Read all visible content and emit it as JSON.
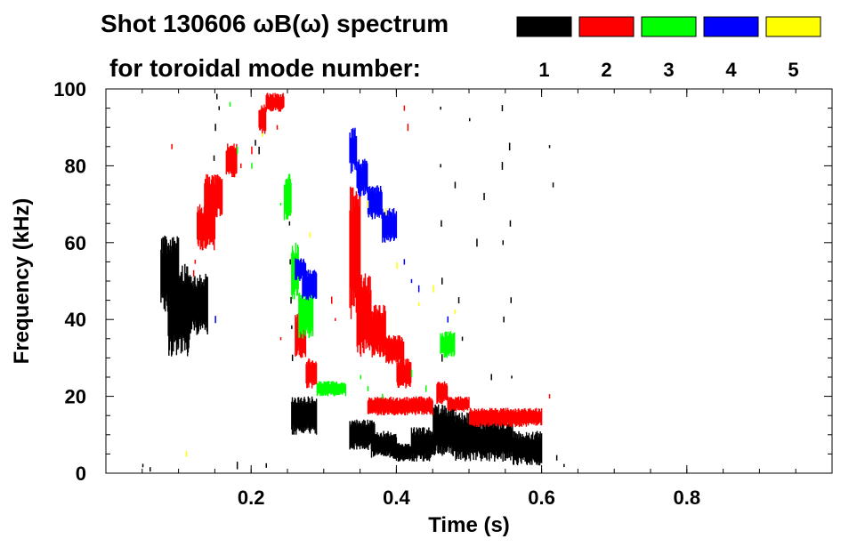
{
  "chart_data": {
    "type": "scatter",
    "title_line1": "Shot 130606 ωB(ω) spectrum",
    "title_line2": "for toroidal mode number:",
    "xlabel": "Time (s)",
    "ylabel": "Frequency (kHz)",
    "xlim": [
      0.0,
      1.0
    ],
    "ylim": [
      0,
      100
    ],
    "xticks": [
      0.2,
      0.4,
      0.6,
      0.8
    ],
    "xtick_labels": [
      "0.2",
      "0.4",
      "0.6",
      "0.8"
    ],
    "yticks": [
      0,
      20,
      40,
      60,
      80,
      100
    ],
    "ytick_labels": [
      "0",
      "20",
      "40",
      "60",
      "80",
      "100"
    ],
    "grid": false,
    "legend_placement": "top-right",
    "legend": [
      {
        "label": "1",
        "color": "#000000"
      },
      {
        "label": "2",
        "color": "#ff0000"
      },
      {
        "label": "3",
        "color": "#00ff00"
      },
      {
        "label": "4",
        "color": "#0000ff"
      },
      {
        "label": "5",
        "color": "#ffff00"
      }
    ],
    "series": [
      {
        "name": "1",
        "color": "#000000",
        "bands": [
          {
            "t": [
              0.075,
              0.1
            ],
            "f": [
              42,
              62
            ]
          },
          {
            "t": [
              0.085,
              0.115
            ],
            "f": [
              30,
              55
            ]
          },
          {
            "t": [
              0.1,
              0.14
            ],
            "f": [
              36,
              52
            ]
          },
          {
            "t": [
              0.255,
              0.29
            ],
            "f": [
              10,
              20
            ]
          },
          {
            "t": [
              0.335,
              0.37
            ],
            "f": [
              6,
              14
            ]
          },
          {
            "t": [
              0.365,
              0.4
            ],
            "f": [
              4,
              11
            ]
          },
          {
            "t": [
              0.395,
              0.42
            ],
            "f": [
              3,
              8
            ]
          },
          {
            "t": [
              0.42,
              0.45
            ],
            "f": [
              3,
              12
            ]
          },
          {
            "t": [
              0.45,
              0.48
            ],
            "f": [
              4,
              18
            ]
          },
          {
            "t": [
              0.48,
              0.515
            ],
            "f": [
              3,
              16
            ]
          },
          {
            "t": [
              0.515,
              0.56
            ],
            "f": [
              3,
              14
            ]
          },
          {
            "t": [
              0.56,
              0.6
            ],
            "f": [
              2,
              11
            ]
          }
        ],
        "points": [
          [
            0.152,
            98
          ],
          [
            0.15,
            90
          ],
          [
            0.148,
            82
          ],
          [
            0.155,
            95
          ],
          [
            0.205,
            86
          ],
          [
            0.21,
            84
          ],
          [
            0.252,
            65
          ],
          [
            0.253,
            55
          ],
          [
            0.254,
            45
          ],
          [
            0.255,
            38
          ],
          [
            0.256,
            30
          ],
          [
            0.46,
            95
          ],
          [
            0.46,
            80
          ],
          [
            0.461,
            65
          ],
          [
            0.462,
            50
          ],
          [
            0.462,
            30
          ],
          [
            0.48,
            75
          ],
          [
            0.485,
            45
          ],
          [
            0.49,
            35
          ],
          [
            0.5,
            92
          ],
          [
            0.51,
            60
          ],
          [
            0.52,
            72
          ],
          [
            0.53,
            25
          ],
          [
            0.545,
            95
          ],
          [
            0.545,
            80
          ],
          [
            0.546,
            60
          ],
          [
            0.547,
            40
          ],
          [
            0.555,
            85
          ],
          [
            0.556,
            65
          ],
          [
            0.557,
            45
          ],
          [
            0.558,
            25
          ],
          [
            0.61,
            85
          ],
          [
            0.615,
            75
          ],
          [
            0.62,
            4
          ],
          [
            0.63,
            2
          ],
          [
            0.05,
            2
          ],
          [
            0.06,
            1
          ],
          [
            0.18,
            2
          ],
          [
            0.22,
            2
          ]
        ]
      },
      {
        "name": "2",
        "color": "#ff0000",
        "bands": [
          {
            "t": [
              0.125,
              0.15
            ],
            "f": [
              58,
              70
            ]
          },
          {
            "t": [
              0.135,
              0.16
            ],
            "f": [
              66,
              78
            ]
          },
          {
            "t": [
              0.165,
              0.18
            ],
            "f": [
              77,
              86
            ]
          },
          {
            "t": [
              0.21,
              0.22
            ],
            "f": [
              88,
              96
            ]
          },
          {
            "t": [
              0.22,
              0.245
            ],
            "f": [
              94,
              99
            ]
          },
          {
            "t": [
              0.26,
              0.275
            ],
            "f": [
              30,
              42
            ]
          },
          {
            "t": [
              0.275,
              0.29
            ],
            "f": [
              22,
              30
            ]
          },
          {
            "t": [
              0.335,
              0.35
            ],
            "f": [
              40,
              75
            ]
          },
          {
            "t": [
              0.345,
              0.365
            ],
            "f": [
              30,
              52
            ]
          },
          {
            "t": [
              0.365,
              0.385
            ],
            "f": [
              30,
              44
            ]
          },
          {
            "t": [
              0.385,
              0.41
            ],
            "f": [
              28,
              36
            ]
          },
          {
            "t": [
              0.4,
              0.42
            ],
            "f": [
              22,
              30
            ]
          },
          {
            "t": [
              0.36,
              0.45
            ],
            "f": [
              15,
              20
            ]
          },
          {
            "t": [
              0.455,
              0.47
            ],
            "f": [
              18,
              24
            ]
          },
          {
            "t": [
              0.47,
              0.5
            ],
            "f": [
              16,
              20
            ]
          },
          {
            "t": [
              0.5,
              0.6
            ],
            "f": [
              12,
              17
            ]
          }
        ],
        "points": [
          [
            0.12,
            52
          ],
          [
            0.122,
            55
          ],
          [
            0.185,
            80
          ],
          [
            0.2,
            84
          ],
          [
            0.235,
            90
          ],
          [
            0.31,
            45
          ],
          [
            0.315,
            40
          ],
          [
            0.41,
            95
          ],
          [
            0.415,
            90
          ],
          [
            0.09,
            85
          ],
          [
            0.24,
            35
          ],
          [
            0.61,
            20
          ]
        ]
      },
      {
        "name": "3",
        "color": "#00ff00",
        "bands": [
          {
            "t": [
              0.245,
              0.255
            ],
            "f": [
              65,
              78
            ]
          },
          {
            "t": [
              0.255,
              0.265
            ],
            "f": [
              45,
              60
            ]
          },
          {
            "t": [
              0.265,
              0.285
            ],
            "f": [
              35,
              48
            ]
          },
          {
            "t": [
              0.29,
              0.33
            ],
            "f": [
              20,
              24
            ]
          },
          {
            "t": [
              0.46,
              0.48
            ],
            "f": [
              30,
              37
            ]
          }
        ],
        "points": [
          [
            0.17,
            96
          ],
          [
            0.18,
            84
          ],
          [
            0.2,
            80
          ],
          [
            0.24,
            70
          ],
          [
            0.42,
            26
          ],
          [
            0.44,
            22
          ],
          [
            0.35,
            25
          ],
          [
            0.36,
            22
          ],
          [
            0.38,
            20
          ]
        ]
      },
      {
        "name": "4",
        "color": "#0000ff",
        "bands": [
          {
            "t": [
              0.335,
              0.345
            ],
            "f": [
              78,
              90
            ]
          },
          {
            "t": [
              0.345,
              0.36
            ],
            "f": [
              72,
              82
            ]
          },
          {
            "t": [
              0.36,
              0.38
            ],
            "f": [
              66,
              75
            ]
          },
          {
            "t": [
              0.38,
              0.4
            ],
            "f": [
              60,
              69
            ]
          },
          {
            "t": [
              0.27,
              0.29
            ],
            "f": [
              45,
              53
            ]
          },
          {
            "t": [
              0.26,
              0.275
            ],
            "f": [
              50,
              56
            ]
          }
        ],
        "points": [
          [
            0.42,
            50
          ],
          [
            0.43,
            48
          ],
          [
            0.41,
            55
          ],
          [
            0.15,
            40
          ],
          [
            0.47,
            40
          ]
        ]
      },
      {
        "name": "5",
        "color": "#ffff00",
        "bands": [],
        "points": [
          [
            0.28,
            62
          ],
          [
            0.36,
            70
          ],
          [
            0.385,
            68
          ],
          [
            0.4,
            54
          ],
          [
            0.45,
            48
          ],
          [
            0.43,
            44
          ],
          [
            0.48,
            42
          ],
          [
            0.11,
            5
          ],
          [
            0.215,
            88
          ]
        ]
      }
    ]
  }
}
